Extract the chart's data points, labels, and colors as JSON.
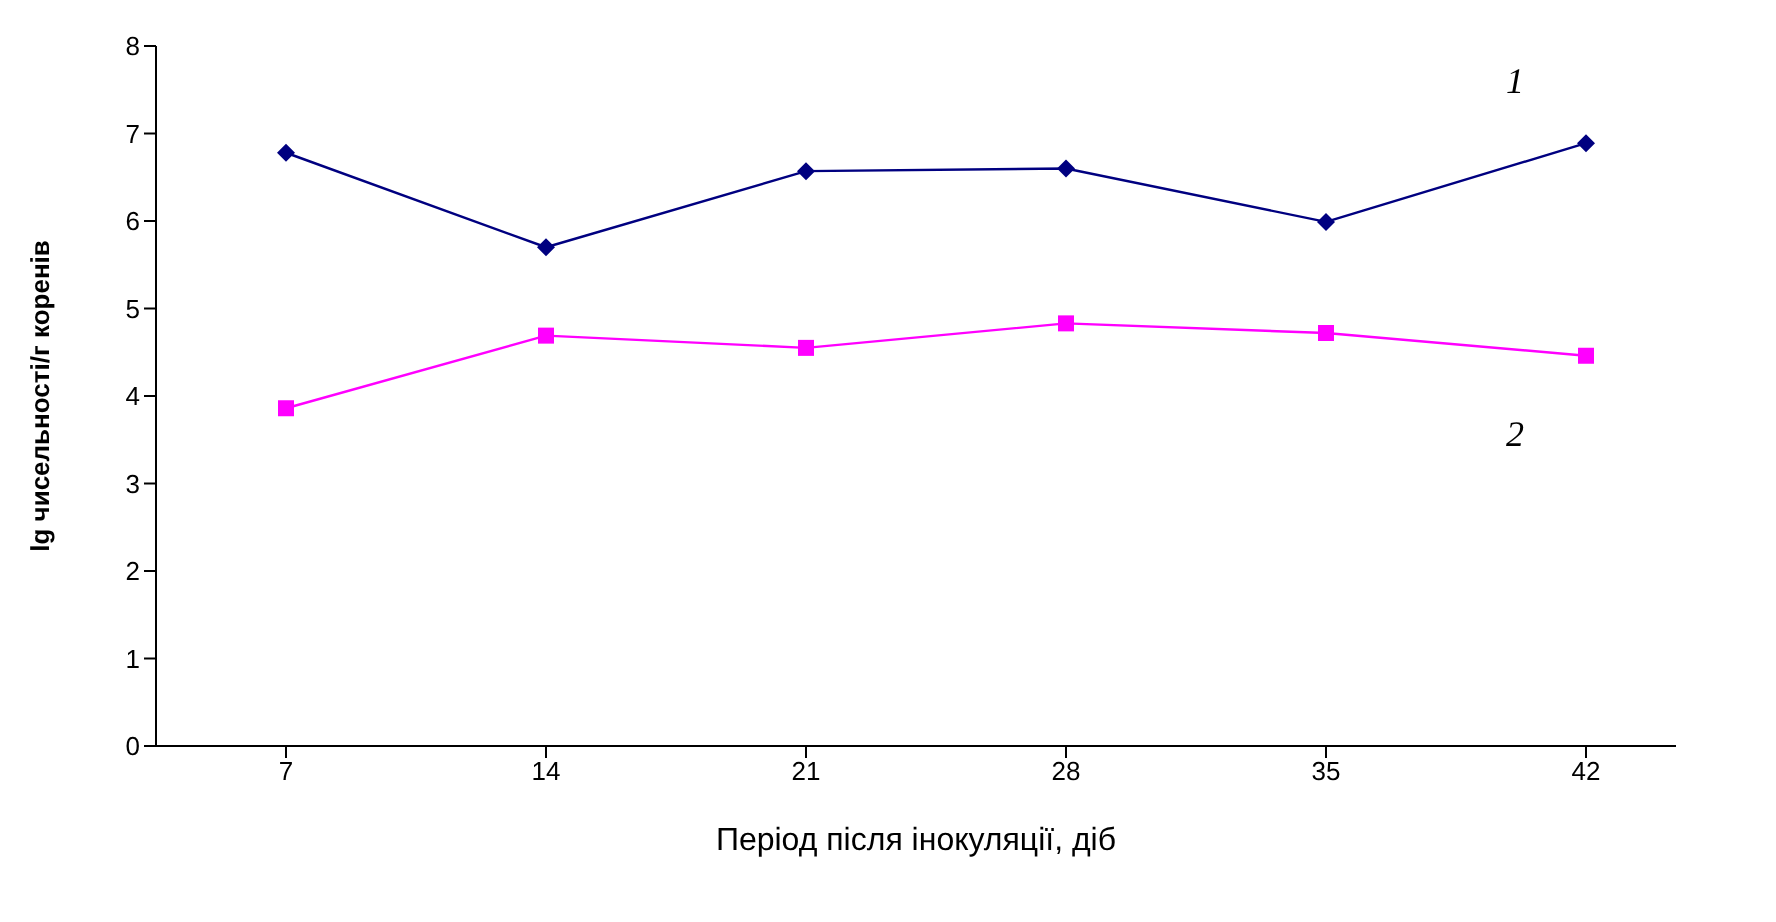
{
  "chart_data": {
    "type": "line",
    "xlabel": "Період після інокуляції, діб",
    "ylabel": "lg чисельності/г коренів",
    "categories": [
      "7",
      "14",
      "21",
      "28",
      "35",
      "42"
    ],
    "series": [
      {
        "name": "1",
        "color": "#000080",
        "marker": "diamond",
        "values": [
          6.78,
          5.7,
          6.57,
          6.6,
          5.99,
          6.89
        ]
      },
      {
        "name": "2",
        "color": "#ff00ff",
        "marker": "square",
        "values": [
          3.86,
          4.69,
          4.55,
          4.83,
          4.72,
          4.46
        ]
      }
    ],
    "ylim": [
      0,
      8
    ],
    "yticks": [
      0,
      1,
      2,
      3,
      4,
      5,
      6,
      7,
      8
    ],
    "grid": false,
    "legend": false
  }
}
